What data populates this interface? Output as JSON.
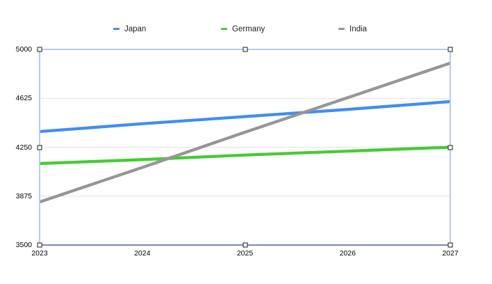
{
  "chart": {
    "legend_entries": [
      {
        "label": "Japan",
        "color": "#3f8ef2"
      },
      {
        "label": "Germany",
        "color": "#45cc32"
      },
      {
        "label": "India",
        "color": "#969696"
      }
    ],
    "colors": {
      "gridline": "#e6e6e6",
      "axis": "#7b8aad",
      "selection_border": "#b9c8f5",
      "background": "#ffffff",
      "tick_text": "#000000"
    }
  },
  "chart_data": {
    "type": "line",
    "x": [
      2023,
      2024,
      2025,
      2026,
      2027
    ],
    "series": [
      {
        "name": "Japan",
        "color": "#3f8ef2",
        "values": [
          4370,
          4430,
          4485,
          4540,
          4600
        ]
      },
      {
        "name": "Germany",
        "color": "#45cc32",
        "values": [
          4125,
          4155,
          4190,
          4220,
          4250
        ]
      },
      {
        "name": "India",
        "color": "#969696",
        "values": [
          3830,
          4095,
          4365,
          4630,
          4895
        ]
      }
    ],
    "title": "",
    "xlabel": "",
    "ylabel": "",
    "ylim": [
      3500,
      5000
    ],
    "y_ticks": [
      5000,
      4625,
      4250,
      3875,
      3500
    ],
    "grid": true,
    "legend_position": "top",
    "selected": true
  }
}
